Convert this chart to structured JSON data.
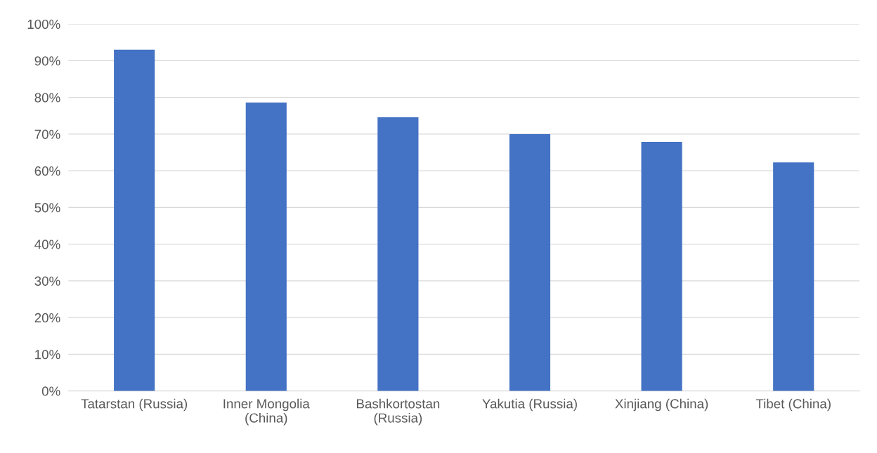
{
  "chart_data": {
    "type": "bar",
    "categories": [
      "Tatarstan (Russia)",
      "Inner Mongolia (China)",
      "Bashkortostan (Russia)",
      "Yakutia (Russia)",
      "Xinjiang (China)",
      "Tibet (China)"
    ],
    "values": [
      93,
      78.6,
      74.6,
      70.0,
      67.9,
      62.3
    ],
    "color": "#4472c4",
    "ylim": [
      0,
      100
    ],
    "yticks": [
      {
        "value": 0,
        "label": "0%"
      },
      {
        "value": 10,
        "label": "10%"
      },
      {
        "value": 20,
        "label": "20%"
      },
      {
        "value": 30,
        "label": "30%"
      },
      {
        "value": 40,
        "label": "40%"
      },
      {
        "value": 50,
        "label": "50%"
      },
      {
        "value": 60,
        "label": "60%"
      },
      {
        "value": 70,
        "label": "70%"
      },
      {
        "value": 80,
        "label": "80%"
      },
      {
        "value": 90,
        "label": "90%"
      },
      {
        "value": 100,
        "label": "100%"
      }
    ],
    "grid": "y"
  }
}
